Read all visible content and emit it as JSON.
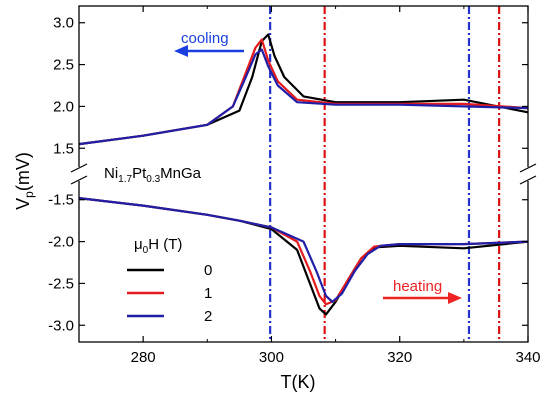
{
  "chart_data": {
    "type": "line",
    "xlabel": "T(K)",
    "ylabel": {
      "main": "V",
      "sub": "p",
      "unit": "(mV)"
    },
    "xlim": [
      270,
      340
    ],
    "xticks": [
      280,
      300,
      320,
      340
    ],
    "sample_label": {
      "parts": [
        "Ni",
        "1.7",
        "Pt",
        "0.3",
        "MnGa"
      ]
    },
    "legend": {
      "title": {
        "mu": "μ",
        "sub": "0",
        "rest": "H (T)"
      },
      "placement": "left-middle",
      "labels": [
        "0",
        "1",
        "2"
      ]
    },
    "annotations": {
      "cooling": "cooling",
      "heating": "heating"
    },
    "colors": {
      "black": "#000000",
      "red": "#e41a1c",
      "blue": "#1f1fa8",
      "arrow_blue": "#1a3fe0",
      "arrow_red": "#ee2222",
      "vline_blue": "#2233cc",
      "vline_red": "#dd1111"
    },
    "upper_panel": {
      "ylim": [
        1.3,
        3.2
      ],
      "yticks": [
        "1.5",
        "2.0",
        "2.5",
        "3.0"
      ],
      "yticks_values": [
        1.5,
        2.0,
        2.5,
        3.0
      ],
      "branch": "cooling",
      "series": [
        {
          "label": "0",
          "color": "black",
          "x": [
            270,
            280,
            290,
            295,
            297,
            298.5,
            299.5,
            300.5,
            302,
            305,
            310,
            320,
            330,
            340
          ],
          "y": [
            1.55,
            1.65,
            1.78,
            1.95,
            2.35,
            2.78,
            2.86,
            2.6,
            2.35,
            2.12,
            2.05,
            2.05,
            2.08,
            1.93
          ]
        },
        {
          "label": "1",
          "color": "red",
          "x": [
            270,
            280,
            290,
            294,
            296,
            297.5,
            298.5,
            299.5,
            301,
            304,
            310,
            320,
            330,
            340
          ],
          "y": [
            1.55,
            1.65,
            1.78,
            2.0,
            2.4,
            2.7,
            2.8,
            2.55,
            2.3,
            2.08,
            2.03,
            2.03,
            2.03,
            1.98
          ]
        },
        {
          "label": "2",
          "color": "blue",
          "x": [
            270,
            280,
            290,
            294,
            296,
            297.5,
            298.5,
            299.5,
            301,
            304,
            310,
            320,
            330,
            340
          ],
          "y": [
            1.55,
            1.65,
            1.78,
            2.0,
            2.35,
            2.62,
            2.68,
            2.48,
            2.25,
            2.05,
            2.02,
            2.02,
            2.0,
            1.98
          ]
        }
      ]
    },
    "lower_panel": {
      "ylim": [
        -3.2,
        -1.3
      ],
      "yticks": [
        "-1.5",
        "-2.0",
        "-2.5",
        "-3.0"
      ],
      "yticks_values": [
        -1.5,
        -2.0,
        -2.5,
        -3.0
      ],
      "branch": "heating",
      "series": [
        {
          "label": "0",
          "color": "black",
          "x": [
            270,
            280,
            290,
            295,
            300,
            304,
            306,
            307.5,
            308.5,
            310,
            312,
            314,
            316,
            320,
            330,
            340
          ],
          "y": [
            -1.48,
            -1.57,
            -1.68,
            -1.75,
            -1.85,
            -2.1,
            -2.5,
            -2.8,
            -2.87,
            -2.72,
            -2.45,
            -2.2,
            -2.07,
            -2.05,
            -2.08,
            -2.0
          ]
        },
        {
          "label": "1",
          "color": "red",
          "x": [
            270,
            280,
            290,
            295,
            300,
            304,
            306,
            307.5,
            308.5,
            310,
            312,
            314,
            316,
            320,
            330,
            340
          ],
          "y": [
            -1.48,
            -1.57,
            -1.68,
            -1.75,
            -1.83,
            -2.0,
            -2.35,
            -2.65,
            -2.75,
            -2.7,
            -2.45,
            -2.2,
            -2.06,
            -2.03,
            -2.03,
            -2.0
          ]
        },
        {
          "label": "2",
          "color": "blue",
          "x": [
            270,
            280,
            290,
            295,
            300,
            305,
            307,
            308.5,
            309.5,
            311,
            313,
            315,
            317,
            320,
            330,
            340
          ],
          "y": [
            -1.48,
            -1.57,
            -1.68,
            -1.75,
            -1.83,
            -2.0,
            -2.35,
            -2.65,
            -2.72,
            -2.62,
            -2.35,
            -2.15,
            -2.05,
            -2.03,
            -2.03,
            -2.0
          ]
        }
      ]
    },
    "vlines": [
      {
        "x": 299.8,
        "color": "blue"
      },
      {
        "x": 308.3,
        "color": "red"
      },
      {
        "x": 330.8,
        "color": "blue"
      },
      {
        "x": 335.5,
        "color": "red"
      }
    ]
  }
}
